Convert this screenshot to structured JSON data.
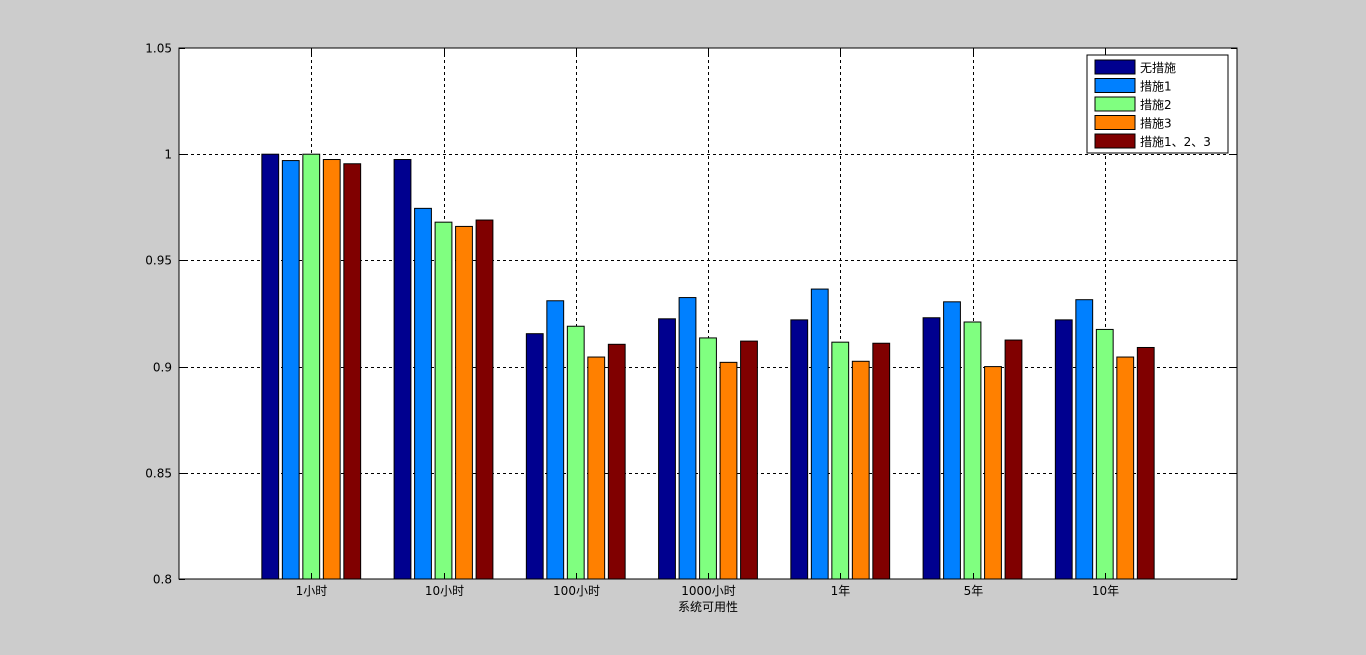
{
  "chart_data": {
    "type": "bar",
    "title": "",
    "xlabel": "系统可用性",
    "ylabel": "",
    "ylim": [
      0.8,
      1.05
    ],
    "yticks": [
      "0.8",
      "0.85",
      "0.9",
      "0.95",
      "1",
      "1.05"
    ],
    "grid": true,
    "legend_position": "top-right",
    "categories": [
      "1小时",
      "10小时",
      "100小时",
      "1000小时",
      "1年",
      "5年",
      "10年"
    ],
    "series": [
      {
        "name": "无措施",
        "color": "#00008f",
        "values": [
          1.0,
          0.9975,
          0.9155,
          0.9225,
          0.922,
          0.923,
          0.922
        ]
      },
      {
        "name": "措施1",
        "color": "#0080ff",
        "values": [
          0.997,
          0.9745,
          0.931,
          0.9325,
          0.9365,
          0.9305,
          0.9315
        ]
      },
      {
        "name": "措施2",
        "color": "#80ff80",
        "values": [
          1.0,
          0.968,
          0.919,
          0.9135,
          0.9115,
          0.921,
          0.9175
        ]
      },
      {
        "name": "措施3",
        "color": "#ff8000",
        "values": [
          0.9975,
          0.966,
          0.9045,
          0.902,
          0.9025,
          0.9,
          0.9045
        ]
      },
      {
        "name": "措施1、2、3",
        "color": "#800000",
        "values": [
          0.9955,
          0.969,
          0.9105,
          0.912,
          0.911,
          0.9125,
          0.909
        ]
      }
    ]
  }
}
